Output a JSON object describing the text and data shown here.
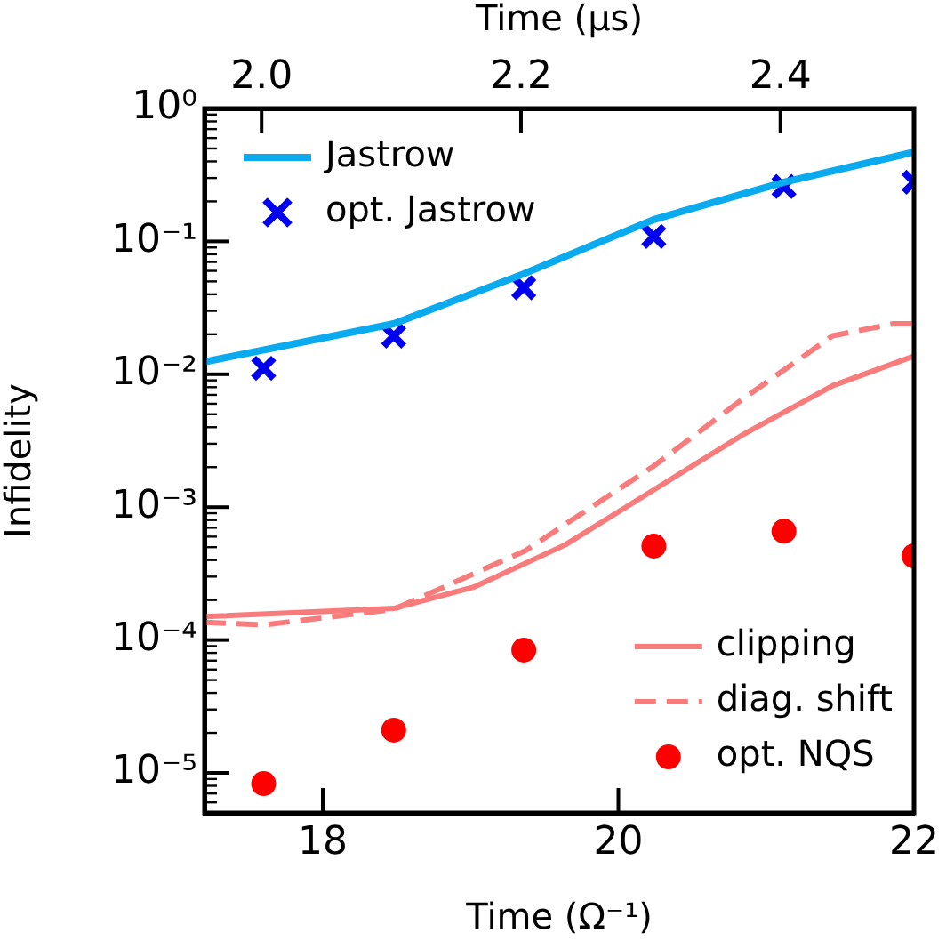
{
  "chart_data": {
    "type": "line",
    "xlabel": "Time (Ω⁻¹)",
    "ylabel": "Infidelity",
    "x2label": "Time (μs)",
    "xlim": [
      17.2,
      22
    ],
    "xticks": [
      18,
      20,
      22
    ],
    "x2lim": [
      1.956,
      2.503
    ],
    "x2ticks": [
      {
        "value": 2.0,
        "label": "2.0"
      },
      {
        "value": 2.2,
        "label": "2.2"
      },
      {
        "value": 2.4,
        "label": "2.4"
      }
    ],
    "ylim": [
      5e-06,
      1
    ],
    "yticks": [
      {
        "value": 1,
        "label": "10⁰"
      },
      {
        "value": 0.1,
        "label": "10⁻¹"
      },
      {
        "value": 0.01,
        "label": "10⁻²"
      },
      {
        "value": 0.001,
        "label": "10⁻³"
      },
      {
        "value": 0.0001,
        "label": "10⁻⁴"
      },
      {
        "value": 1e-05,
        "label": "10⁻⁵"
      }
    ],
    "log": "y",
    "grid": false,
    "legend": "top left",
    "series": [
      {
        "name": "Jastrow",
        "type": "line",
        "color": "#0aaaee",
        "marker": "none",
        "line_style": "solid",
        "x": [
          17.2,
          18.48,
          19.36,
          20.24,
          21.12,
          22.0
        ],
        "values": [
          0.0124,
          0.024,
          0.057,
          0.146,
          0.279,
          0.47
        ]
      },
      {
        "name": "opt. Jastrow",
        "type": "scatter",
        "color": "#0000ee",
        "marker": "cross",
        "x": [
          17.6,
          18.48,
          19.36,
          20.24,
          21.12,
          22.0
        ],
        "values": [
          0.0111,
          0.0194,
          0.0448,
          0.109,
          0.259,
          0.279
        ]
      },
      {
        "name": "clipping",
        "type": "line",
        "color": "#f87c7c",
        "marker": "none",
        "line_style": "solid",
        "x": [
          17.2,
          18.48,
          19.02,
          19.64,
          20.24,
          20.84,
          21.45,
          22.0
        ],
        "values": [
          0.00015,
          0.000173,
          0.00025,
          0.00052,
          0.00135,
          0.0035,
          0.0082,
          0.0137
        ]
      },
      {
        "name": "diag. shift",
        "type": "line",
        "color": "#f87c7c",
        "marker": "none",
        "line_style": "dashed",
        "x": [
          17.2,
          17.6,
          18.48,
          19.37,
          20.24,
          20.84,
          21.45,
          21.86,
          22.0
        ],
        "values": [
          0.000136,
          0.00013,
          0.00017,
          0.00047,
          0.00204,
          0.0065,
          0.0195,
          0.024,
          0.024
        ]
      },
      {
        "name": "opt. NQS",
        "type": "scatter",
        "color": "#ff0000",
        "marker": "circle",
        "x": [
          17.6,
          18.48,
          19.36,
          20.24,
          21.12,
          22.0
        ],
        "values": [
          8.3e-06,
          2.1e-05,
          8.4e-05,
          0.00051,
          0.00066,
          0.00043
        ]
      }
    ]
  }
}
